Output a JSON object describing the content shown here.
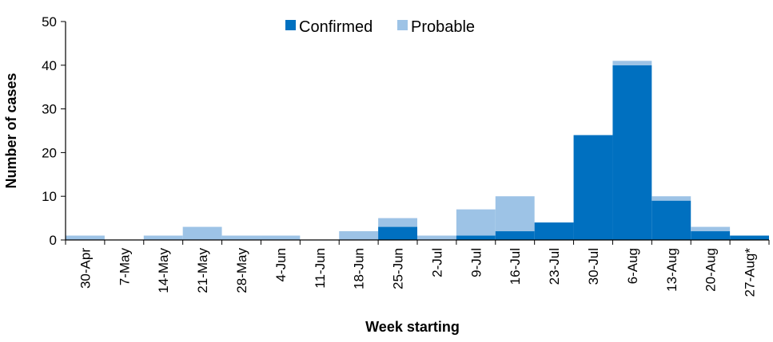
{
  "chart_data": {
    "type": "bar",
    "stacked": true,
    "title": "",
    "xlabel": "Week starting",
    "ylabel": "Number of cases",
    "ylim": [
      0,
      50
    ],
    "yticks": [
      "0",
      "10",
      "20",
      "30",
      "40",
      "50"
    ],
    "grid": false,
    "legend_position": "top-center",
    "categories": [
      "30-Apr",
      "7-May",
      "14-May",
      "21-May",
      "28-May",
      "4-Jun",
      "11-Jun",
      "18-Jun",
      "25-Jun",
      "2-Jul",
      "9-Jul",
      "16-Jul",
      "23-Jul",
      "30-Jul",
      "6-Aug",
      "13-Aug",
      "20-Aug",
      "27-Aug*"
    ],
    "series": [
      {
        "name": "Confirmed",
        "color": "#0070C0",
        "values": [
          0,
          0,
          0,
          0,
          0,
          0,
          0,
          0,
          3,
          0,
          1,
          2,
          4,
          24,
          40,
          9,
          2,
          1
        ]
      },
      {
        "name": "Probable",
        "color": "#9DC3E6",
        "values": [
          1,
          0,
          1,
          3,
          1,
          1,
          0,
          2,
          2,
          1,
          6,
          8,
          0,
          0,
          1,
          1,
          1,
          0
        ]
      }
    ]
  }
}
